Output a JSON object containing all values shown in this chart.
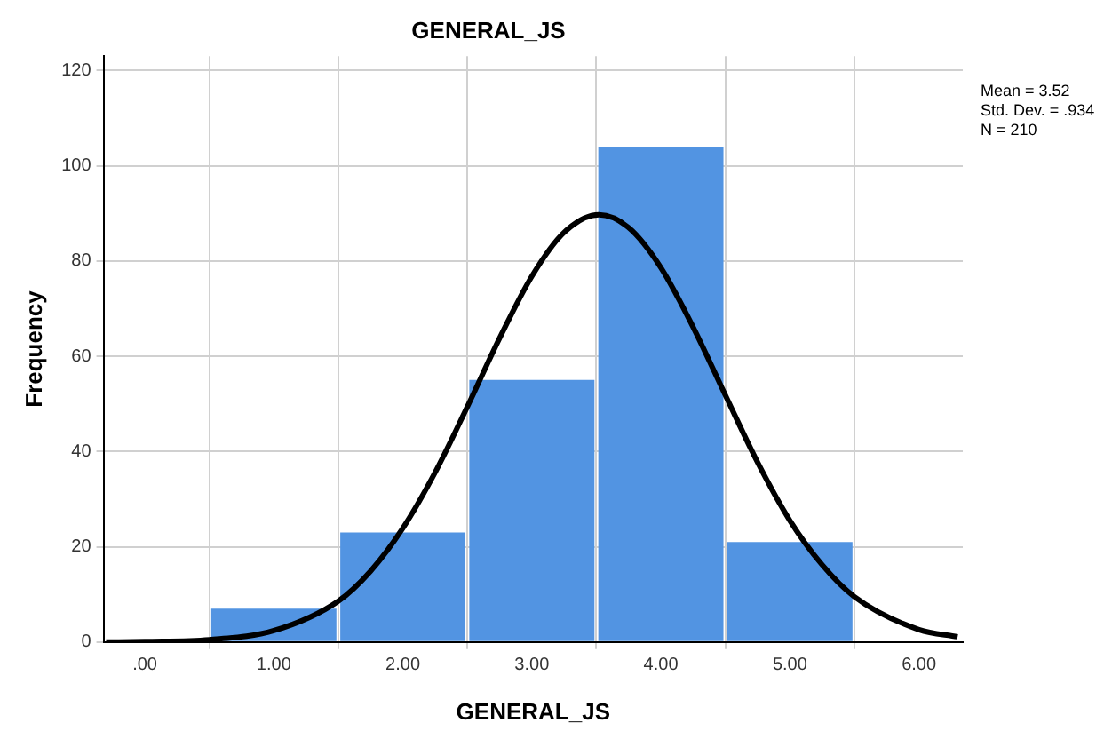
{
  "chart_data": {
    "type": "histogram",
    "title": "GENERAL_JS",
    "xlabel": "GENERAL_JS",
    "ylabel": "Frequency",
    "bins": [
      0.5,
      1.5,
      2.5,
      3.5,
      4.5,
      5.5
    ],
    "values": [
      7,
      23,
      55,
      104,
      21
    ],
    "color": "#5294e2",
    "series": [
      {
        "type": "line",
        "color": "#000000",
        "x": [
          -0.3,
          0,
          0.5,
          1,
          1.5,
          1.75,
          2,
          2.25,
          2.5,
          2.75,
          3,
          3.25,
          3.52,
          3.75,
          4,
          4.25,
          4.5,
          4.75,
          5,
          5.25,
          5.5,
          6,
          6.3
        ],
        "values": [
          0,
          0.1,
          0.5,
          2.4,
          8.6,
          14.9,
          23.9,
          35.6,
          49.4,
          63.8,
          76.8,
          86,
          89.7,
          87,
          78.6,
          66.1,
          51.8,
          37.7,
          25.5,
          16.2,
          9.5,
          2.6,
          1.1
        ]
      }
    ],
    "marker": "none",
    "xlim": [
      -0.32,
      6.34
    ],
    "ylim": [
      0,
      123
    ],
    "xticks": [
      {
        "value": 0,
        "label": ".00"
      },
      {
        "value": 1,
        "label": "1.00"
      },
      {
        "value": 2,
        "label": "2.00"
      },
      {
        "value": 3,
        "label": "3.00"
      },
      {
        "value": 4,
        "label": "4.00"
      },
      {
        "value": 5,
        "label": "5.00"
      },
      {
        "value": 6,
        "label": "6.00"
      }
    ],
    "yticks": [
      0,
      20,
      40,
      60,
      80,
      100,
      120
    ],
    "grid": true,
    "legend": false,
    "annotations": [
      "Mean = 3.52",
      "Std. Dev. = .934",
      "N = 210"
    ]
  }
}
